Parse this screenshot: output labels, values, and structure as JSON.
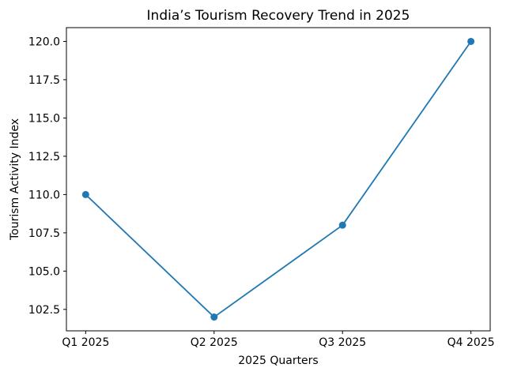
{
  "chart_data": {
    "type": "line",
    "title": "India’s Tourism Recovery Trend in 2025",
    "xlabel": "2025 Quarters",
    "ylabel": "Tourism Activity Index",
    "categories": [
      "Q1 2025",
      "Q2 2025",
      "Q3 2025",
      "Q4 2025"
    ],
    "values": [
      110,
      102,
      108,
      120
    ],
    "yticks": [
      102.5,
      105.0,
      107.5,
      110.0,
      112.5,
      115.0,
      117.5,
      120.0
    ],
    "ylim": [
      101.1,
      120.9
    ],
    "xlim": [
      -0.15,
      3.15
    ],
    "line_color": "#1f77b4",
    "marker": "circle",
    "grid": false,
    "legend": "none",
    "background_color": "#ffffff",
    "frame_color": "#000000",
    "text_color": "#000000"
  }
}
